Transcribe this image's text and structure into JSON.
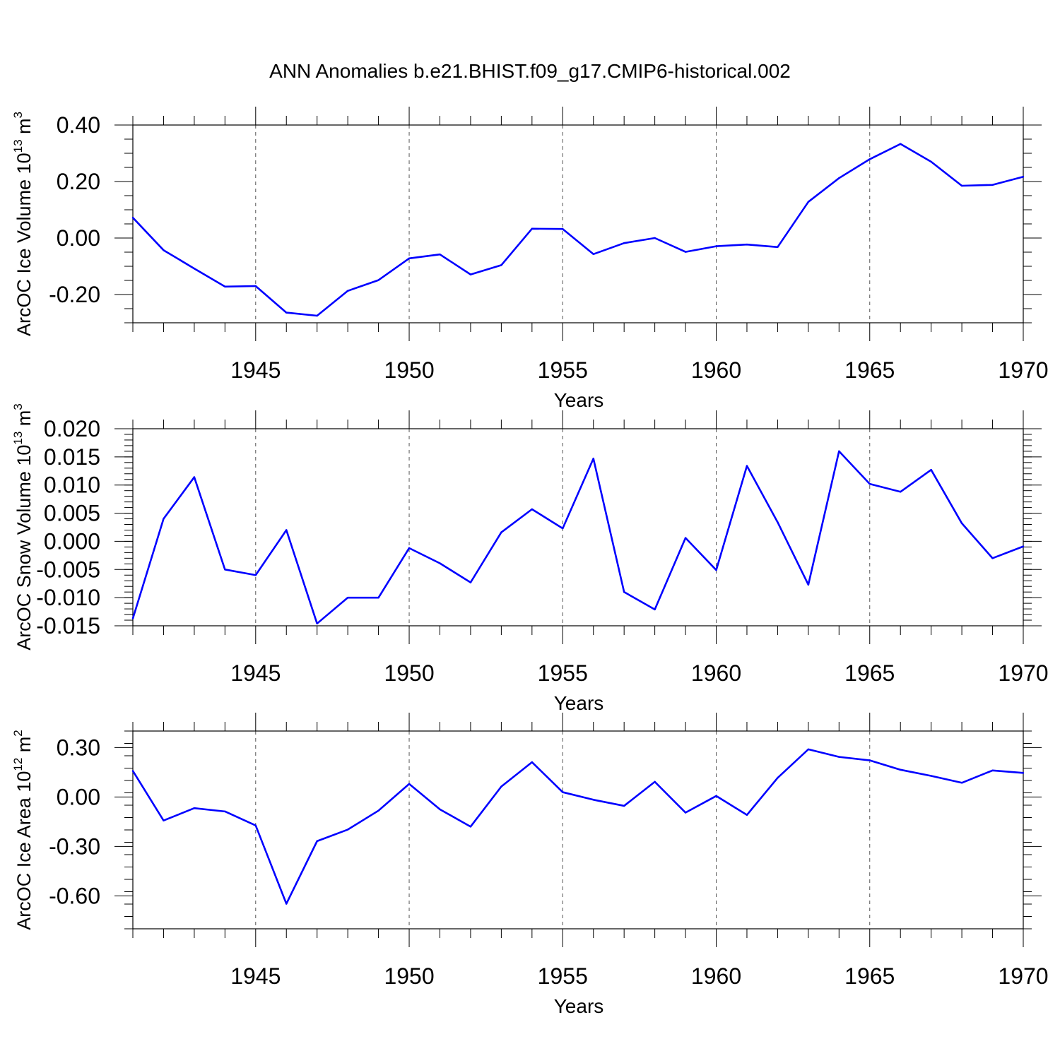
{
  "chart_data": {
    "title": "ANN Anomalies b.e21.BHIST.f09_g17.CMIP6-historical.002",
    "line_color": "#0000ff",
    "years": [
      1941,
      1942,
      1943,
      1944,
      1945,
      1946,
      1947,
      1948,
      1949,
      1950,
      1951,
      1952,
      1953,
      1954,
      1955,
      1956,
      1957,
      1958,
      1959,
      1960,
      1961,
      1962,
      1963,
      1964,
      1965,
      1966,
      1967,
      1968,
      1969,
      1970
    ],
    "panels": [
      {
        "type": "line",
        "name": "ice-volume",
        "ylabel_main": "ArcOC Ice Volume 10",
        "ylabel_exp": "13",
        "ylabel_unit": " m",
        "ylabel_unit_exp": "3",
        "xlabel": "Years",
        "xlim": [
          1941,
          1970
        ],
        "ylim": [
          -0.3,
          0.4
        ],
        "yticks": [
          -0.2,
          0.0,
          0.2,
          0.4
        ],
        "ytick_labels": [
          "-0.20",
          "0.00",
          "0.20",
          "0.40"
        ],
        "yminor_step": 0.05,
        "xticks": [
          1945,
          1950,
          1955,
          1960,
          1965,
          1970
        ],
        "xtick_labels": [
          "1945",
          "1950",
          "1955",
          "1960",
          "1965",
          "1970"
        ],
        "values": [
          0.072,
          -0.043,
          -0.108,
          -0.172,
          -0.17,
          -0.264,
          -0.275,
          -0.187,
          -0.149,
          -0.072,
          -0.058,
          -0.129,
          -0.096,
          0.033,
          0.032,
          -0.057,
          -0.018,
          0.0,
          -0.049,
          -0.029,
          -0.023,
          -0.032,
          0.128,
          0.212,
          0.279,
          0.333,
          0.27,
          0.185,
          0.188,
          0.217
        ]
      },
      {
        "type": "line",
        "name": "snow-volume",
        "ylabel_main": "ArcOC Snow Volume 10",
        "ylabel_exp": "13",
        "ylabel_unit": " m",
        "ylabel_unit_exp": "3",
        "xlabel": "Years",
        "xlim": [
          1941,
          1970
        ],
        "ylim": [
          -0.015,
          0.02
        ],
        "yticks": [
          -0.015,
          -0.01,
          -0.005,
          0.0,
          0.005,
          0.01,
          0.015,
          0.02
        ],
        "ytick_labels": [
          "-0.015",
          "-0.010",
          "-0.005",
          "0.000",
          "0.005",
          "0.010",
          "0.015",
          "0.020"
        ],
        "yminor_step": 0.001,
        "xticks": [
          1945,
          1950,
          1955,
          1960,
          1965,
          1970
        ],
        "xtick_labels": [
          "1945",
          "1950",
          "1955",
          "1960",
          "1965",
          "1970"
        ],
        "values": [
          -0.0137,
          0.004,
          0.0114,
          -0.005,
          -0.006,
          0.002,
          -0.0146,
          -0.01,
          -0.01,
          -0.0012,
          -0.0039,
          -0.0073,
          0.0016,
          0.0057,
          0.0023,
          0.0147,
          -0.009,
          -0.0121,
          0.0006,
          -0.0051,
          0.0134,
          0.0034,
          -0.0077,
          0.016,
          0.0102,
          0.0088,
          0.0127,
          0.0032,
          -0.003,
          -0.0009
        ]
      },
      {
        "type": "line",
        "name": "ice-area",
        "ylabel_main": "ArcOC Ice Area 10",
        "ylabel_exp": "12",
        "ylabel_unit": " m",
        "ylabel_unit_exp": "2",
        "xlabel": "Years",
        "xlim": [
          1941,
          1970
        ],
        "ylim": [
          -0.8,
          0.4
        ],
        "yticks": [
          -0.6,
          -0.3,
          0.0,
          0.3
        ],
        "ytick_labels": [
          "-0.60",
          "-0.30",
          "0.00",
          "0.30"
        ],
        "yminor_step": 0.075,
        "xticks": [
          1945,
          1950,
          1955,
          1960,
          1965,
          1970
        ],
        "xtick_labels": [
          "1945",
          "1950",
          "1955",
          "1960",
          "1965",
          "1970"
        ],
        "values": [
          0.158,
          -0.143,
          -0.068,
          -0.088,
          -0.173,
          -0.648,
          -0.268,
          -0.198,
          -0.083,
          0.079,
          -0.075,
          -0.18,
          0.063,
          0.211,
          0.029,
          -0.017,
          -0.054,
          0.092,
          -0.095,
          0.006,
          -0.109,
          0.116,
          0.289,
          0.243,
          0.222,
          0.165,
          0.128,
          0.086,
          0.161,
          0.146
        ]
      }
    ]
  }
}
